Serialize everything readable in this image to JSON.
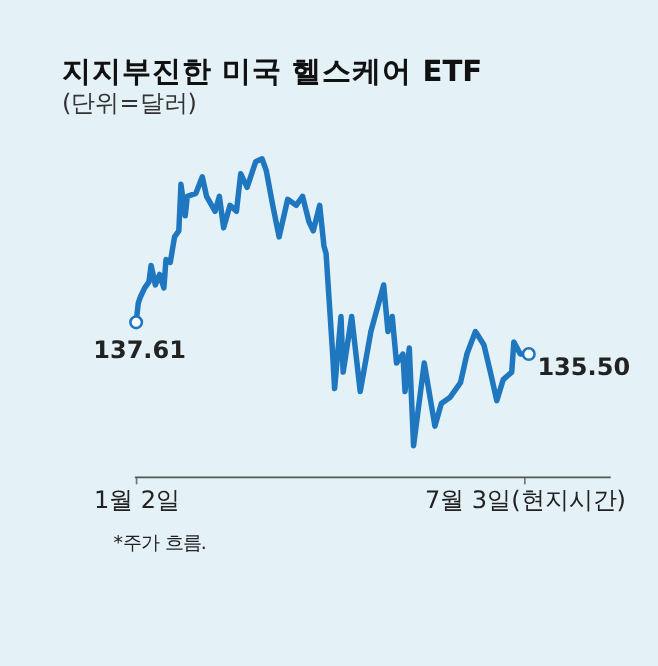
{
  "chart_data": {
    "type": "line",
    "title": "지지부진한 미국 헬스케어 ETF",
    "subtitle": "(단위=달러)",
    "tick_labels": "x",
    "x": [
      "--01-02",
      "--01-03",
      "--01-04",
      "--01-06",
      "--01-08",
      "--01-09",
      "--01-11",
      "--01-13",
      "--01-15",
      "--01-16",
      "--01-18",
      "--01-20",
      "--01-22",
      "--01-23",
      "--01-25",
      "--01-26",
      "--01-30",
      "--02-02",
      "--02-04",
      "--02-08",
      "--02-10",
      "--02-12",
      "--02-15",
      "--02-18",
      "--02-20",
      "--02-23",
      "--02-27",
      "--03-02",
      "--03-04",
      "--03-07",
      "--03-10",
      "--03-14",
      "--03-18",
      "--03-21",
      "--03-24",
      "--03-26",
      "--03-29",
      "--03-31",
      "--04-01",
      "--04-04",
      "--04-05",
      "--04-08",
      "--04-09",
      "--04-13",
      "--04-17",
      "--04-22",
      "--04-28",
      "--04-30",
      "--05-02",
      "--05-04",
      "--05-07",
      "--05-08",
      "--05-10",
      "--05-12",
      "--05-17",
      "--05-22",
      "--05-25",
      "--05-29",
      "--06-03",
      "--06-06",
      "--06-10",
      "--06-14",
      "--06-17",
      "--06-20",
      "--06-23",
      "--06-27",
      "--06-28",
      "--07-01",
      "--07-05"
    ],
    "series": [
      {
        "color": "#1f77c0",
        "values": [
          137.61,
          138.9,
          139.3,
          139.9,
          140.3,
          141.4,
          140.1,
          140.8,
          139.9,
          141.8,
          141.6,
          143.3,
          143.7,
          146.8,
          144.7,
          146.0,
          146.2,
          147.3,
          146.0,
          145.0,
          146.0,
          143.9,
          145.4,
          145.0,
          147.5,
          146.6,
          148.3,
          148.5,
          147.7,
          145.4,
          143.3,
          145.8,
          145.4,
          146.0,
          144.3,
          143.7,
          145.4,
          142.7,
          142.2,
          135.7,
          133.2,
          138.0,
          134.3,
          138.0,
          133.0,
          137.0,
          140.1,
          137.0,
          138.0,
          134.9,
          135.5,
          133.0,
          135.9,
          129.4,
          134.9,
          130.7,
          132.2,
          132.6,
          133.6,
          135.5,
          137.0,
          136.1,
          134.3,
          132.4,
          133.8,
          134.3,
          136.3,
          135.5,
          135.5
        ],
        "value_labels": [
          "137.61",
          null,
          null,
          null,
          null,
          null,
          null,
          null,
          null,
          null,
          null,
          null,
          null,
          null,
          null,
          null,
          null,
          null,
          null,
          null,
          null,
          null,
          null,
          null,
          null,
          null,
          null,
          null,
          null,
          null,
          null,
          null,
          null,
          null,
          null,
          null,
          null,
          null,
          null,
          null,
          null,
          null,
          null,
          null,
          null,
          null,
          null,
          null,
          null,
          null,
          null,
          null,
          null,
          null,
          null,
          null,
          null,
          null,
          null,
          null,
          null,
          null,
          null,
          null,
          null,
          null,
          null,
          null,
          "135.50"
        ]
      }
    ],
    "xlim": [
      "--01-01",
      "--08-12"
    ],
    "xticks": [
      {
        "value": "--01-02",
        "label": "1월 2일"
      },
      {
        "value": "--07-03",
        "label": "7월 3일(현지시간)"
      }
    ],
    "annotations": [
      "*주가 흐름."
    ],
    "grid": false
  }
}
